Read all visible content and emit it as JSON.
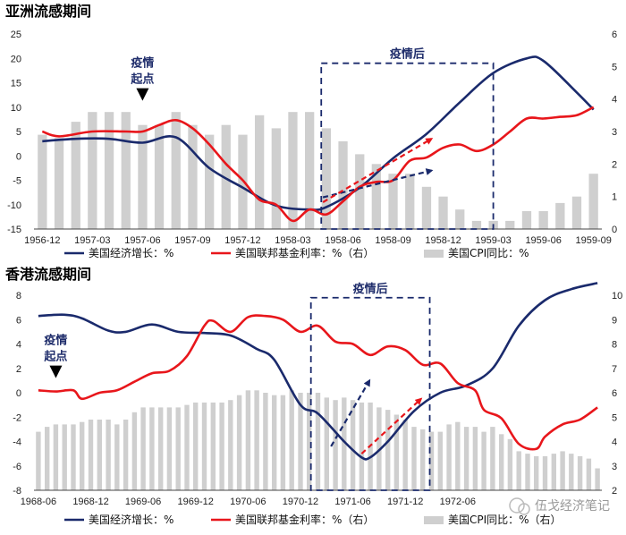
{
  "watermark": "伍戈经济笔记",
  "chart_data": [
    {
      "type": "line+bar",
      "title": "亚洲流感期间",
      "x_labels": [
        "1956-12",
        "1957-03",
        "1957-06",
        "1957-09",
        "1957-12",
        "1958-03",
        "1958-06",
        "1958-09",
        "1958-12",
        "1959-03",
        "1959-06",
        "1959-09"
      ],
      "y_left": {
        "min": -15,
        "max": 25,
        "ticks": [
          -15,
          -10,
          -5,
          0,
          5,
          10,
          15,
          20,
          25
        ]
      },
      "y_right": {
        "min": 0,
        "max": 6,
        "ticks": [
          0,
          1,
          2,
          3,
          4,
          5,
          6
        ]
      },
      "annotation_start": "疫情\n起点",
      "annotation_box": "疫情后",
      "legend": [
        "美国经济增长：%",
        "美国联邦基金利率：%（右）",
        "美国CPI同比：%"
      ],
      "colors": {
        "gdp": "#1a2a6c",
        "rate": "#e8161b",
        "cpi": "#cfcfcf"
      },
      "series": [
        {
          "name": "美国经济增长：%",
          "axis": "left",
          "x": [
            0,
            2,
            4,
            6,
            8,
            10,
            12,
            14,
            16,
            17,
            19,
            21,
            23,
            25,
            27,
            29,
            30,
            32,
            33
          ],
          "values": [
            3.0,
            3.5,
            3.5,
            2.7,
            3.8,
            -2.5,
            -6.5,
            -10.2,
            -11.0,
            -10.5,
            -6.5,
            -0.5,
            4.5,
            11.0,
            17.0,
            20.0,
            19.5,
            13.0,
            9.5
          ]
        },
        {
          "name": "美国联邦基金利率：%（右）",
          "axis": "right",
          "x": [
            0,
            1,
            3,
            5,
            6,
            7,
            8,
            9,
            10,
            11,
            12,
            13,
            14,
            15,
            16,
            17,
            18,
            19,
            20,
            21,
            22,
            23,
            24,
            25,
            26,
            27,
            28,
            29,
            30,
            31,
            32,
            33
          ],
          "values": [
            3.0,
            2.85,
            3.0,
            3.0,
            3.0,
            3.2,
            3.35,
            3.1,
            2.6,
            2.0,
            1.5,
            0.9,
            0.75,
            0.25,
            0.6,
            0.45,
            0.85,
            1.3,
            1.45,
            1.5,
            2.1,
            2.2,
            2.5,
            2.6,
            2.4,
            2.6,
            3.0,
            3.4,
            3.4,
            3.45,
            3.5,
            3.75
          ]
        },
        {
          "name": "美国CPI同比：%",
          "axis": "right",
          "type": "bar",
          "x": [
            0,
            1,
            2,
            3,
            4,
            5,
            6,
            7,
            8,
            9,
            10,
            11,
            12,
            13,
            14,
            15,
            16,
            17,
            18,
            19,
            20,
            21,
            22,
            23,
            24,
            25,
            26,
            27,
            28,
            29,
            30,
            31,
            32,
            33
          ],
          "values": [
            2.9,
            2.8,
            3.3,
            3.6,
            3.6,
            3.6,
            3.2,
            3.2,
            3.6,
            3.2,
            2.9,
            3.2,
            2.9,
            3.5,
            3.1,
            3.6,
            3.6,
            3.1,
            2.7,
            2.3,
            2.0,
            1.7,
            1.7,
            1.3,
            1.0,
            0.6,
            0.25,
            0.25,
            0.25,
            0.55,
            0.55,
            0.8,
            1.0,
            1.7
          ]
        }
      ]
    },
    {
      "type": "line+bar",
      "title": "香港流感期间",
      "x_labels": [
        "1968-06",
        "1968-12",
        "1969-06",
        "1969-12",
        "1970-06",
        "1970-12",
        "1971-06",
        "1971-12",
        "1972-06"
      ],
      "y_left": {
        "min": -8,
        "max": 8,
        "ticks": [
          -8,
          -6,
          -4,
          -2,
          0,
          2,
          4,
          6,
          8
        ]
      },
      "y_right": {
        "min": 2,
        "max": 10,
        "ticks": [
          2,
          3,
          4,
          5,
          6,
          7,
          8,
          9,
          10
        ]
      },
      "annotation_start": "疫情\n起点",
      "annotation_box": "疫情后",
      "legend": [
        "美国经济增长：%",
        "美国联邦基金利率：%（右）",
        "美国CPI同比：%（右）"
      ],
      "colors": {
        "gdp": "#1a2a6c",
        "rate": "#e8161b",
        "cpi": "#cfcfcf"
      },
      "series": [
        {
          "name": "美国经济增长：%",
          "axis": "left",
          "x": [
            0,
            3,
            5,
            8,
            10,
            13,
            16,
            19,
            22,
            25,
            27,
            30,
            32,
            35,
            37,
            38,
            40,
            43,
            46,
            49,
            52,
            55,
            58,
            61,
            64
          ],
          "values": [
            6.3,
            6.4,
            6.1,
            5.1,
            5.0,
            5.6,
            5.0,
            4.9,
            4.7,
            3.6,
            2.7,
            -1.0,
            -1.7,
            -4.0,
            -5.3,
            -5.3,
            -4.0,
            -1.5,
            0.0,
            0.6,
            2.0,
            5.5,
            7.6,
            8.5,
            9.0
          ]
        },
        {
          "name": "美国联邦基金利率：%（右）",
          "axis": "right",
          "x": [
            0,
            2,
            4,
            5,
            7,
            9,
            11,
            13,
            15,
            17,
            19,
            20,
            22,
            24,
            26,
            28,
            30,
            32,
            34,
            36,
            38,
            40,
            42,
            44,
            46,
            48,
            50,
            51,
            53,
            55,
            57,
            58,
            60,
            62,
            64
          ],
          "values": [
            6.1,
            6.05,
            6.1,
            5.75,
            6.0,
            6.1,
            6.45,
            6.8,
            6.9,
            7.5,
            8.75,
            8.95,
            8.5,
            9.1,
            9.15,
            9.0,
            8.5,
            8.75,
            8.1,
            8.0,
            7.55,
            7.9,
            7.75,
            7.15,
            7.2,
            6.4,
            6.1,
            5.3,
            4.95,
            3.9,
            3.7,
            4.2,
            4.7,
            4.9,
            5.4
          ]
        },
        {
          "name": "美国CPI同比：%（右）",
          "axis": "right",
          "type": "bar",
          "x": [
            0,
            1,
            2,
            3,
            4,
            5,
            6,
            7,
            8,
            9,
            10,
            11,
            12,
            13,
            14,
            15,
            16,
            17,
            18,
            19,
            20,
            21,
            22,
            23,
            24,
            25,
            26,
            27,
            28,
            29,
            30,
            31,
            32,
            33,
            34,
            35,
            36,
            37,
            38,
            39,
            40,
            41,
            42,
            43,
            44,
            45,
            46,
            47,
            48,
            49,
            50,
            51,
            52,
            53,
            54,
            55,
            56,
            57,
            58,
            59,
            60,
            61,
            62,
            63,
            64
          ],
          "values": [
            4.4,
            4.6,
            4.7,
            4.7,
            4.7,
            4.8,
            4.9,
            4.9,
            4.9,
            4.7,
            4.9,
            5.2,
            5.4,
            5.4,
            5.4,
            5.4,
            5.4,
            5.5,
            5.6,
            5.6,
            5.6,
            5.6,
            5.7,
            5.9,
            6.1,
            6.1,
            6.0,
            5.9,
            5.9,
            6.1,
            6.0,
            6.0,
            6.0,
            5.8,
            5.7,
            5.8,
            5.7,
            5.6,
            5.6,
            5.4,
            5.3,
            5.1,
            4.9,
            4.6,
            4.5,
            4.4,
            4.4,
            4.7,
            4.8,
            4.6,
            4.6,
            4.4,
            4.6,
            4.3,
            4.1,
            3.6,
            3.5,
            3.4,
            3.4,
            3.5,
            3.6,
            3.5,
            3.4,
            3.3,
            2.9
          ]
        }
      ]
    }
  ]
}
